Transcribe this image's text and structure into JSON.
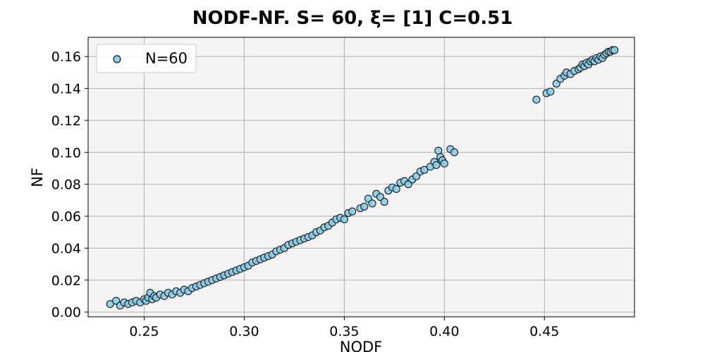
{
  "chart_data": {
    "type": "scatter",
    "title": "NODF-NF. S= 60, ξ= [1] C=0.51",
    "xlabel": "NODF",
    "ylabel": "NF",
    "xlim": [
      0.222,
      0.495
    ],
    "ylim": [
      -0.003,
      0.172
    ],
    "x_ticks": [
      "0.25",
      "0.30",
      "0.35",
      "0.40",
      "0.45"
    ],
    "x_tick_values": [
      0.25,
      0.3,
      0.35,
      0.4,
      0.45
    ],
    "y_ticks": [
      "0.00",
      "0.02",
      "0.04",
      "0.06",
      "0.08",
      "0.10",
      "0.12",
      "0.14",
      "0.16"
    ],
    "y_tick_values": [
      0.0,
      0.02,
      0.04,
      0.06,
      0.08,
      0.1,
      0.12,
      0.14,
      0.16
    ],
    "grid": true,
    "legend_position": "top-left",
    "plot_background": "#f4f4f4",
    "marker_color": "#87ceeb",
    "marker_edge_color": "#1a1a1a",
    "series": [
      {
        "name": "N=60",
        "points": [
          [
            0.233,
            0.005
          ],
          [
            0.236,
            0.007
          ],
          [
            0.238,
            0.004
          ],
          [
            0.24,
            0.006
          ],
          [
            0.242,
            0.005
          ],
          [
            0.244,
            0.006
          ],
          [
            0.246,
            0.007
          ],
          [
            0.248,
            0.006
          ],
          [
            0.25,
            0.008
          ],
          [
            0.251,
            0.007
          ],
          [
            0.252,
            0.009
          ],
          [
            0.253,
            0.012
          ],
          [
            0.254,
            0.008
          ],
          [
            0.255,
            0.01
          ],
          [
            0.256,
            0.009
          ],
          [
            0.258,
            0.011
          ],
          [
            0.26,
            0.01
          ],
          [
            0.262,
            0.012
          ],
          [
            0.264,
            0.011
          ],
          [
            0.266,
            0.013
          ],
          [
            0.268,
            0.012
          ],
          [
            0.27,
            0.014
          ],
          [
            0.272,
            0.013
          ],
          [
            0.274,
            0.015
          ],
          [
            0.276,
            0.016
          ],
          [
            0.278,
            0.017
          ],
          [
            0.28,
            0.018
          ],
          [
            0.282,
            0.019
          ],
          [
            0.284,
            0.02
          ],
          [
            0.286,
            0.021
          ],
          [
            0.288,
            0.022
          ],
          [
            0.29,
            0.023
          ],
          [
            0.292,
            0.024
          ],
          [
            0.294,
            0.025
          ],
          [
            0.296,
            0.026
          ],
          [
            0.298,
            0.027
          ],
          [
            0.3,
            0.028
          ],
          [
            0.302,
            0.029
          ],
          [
            0.304,
            0.031
          ],
          [
            0.306,
            0.032
          ],
          [
            0.308,
            0.033
          ],
          [
            0.31,
            0.034
          ],
          [
            0.312,
            0.035
          ],
          [
            0.314,
            0.036
          ],
          [
            0.316,
            0.038
          ],
          [
            0.318,
            0.039
          ],
          [
            0.32,
            0.04
          ],
          [
            0.322,
            0.042
          ],
          [
            0.324,
            0.043
          ],
          [
            0.326,
            0.044
          ],
          [
            0.328,
            0.045
          ],
          [
            0.33,
            0.046
          ],
          [
            0.332,
            0.047
          ],
          [
            0.334,
            0.048
          ],
          [
            0.336,
            0.05
          ],
          [
            0.338,
            0.051
          ],
          [
            0.34,
            0.053
          ],
          [
            0.342,
            0.054
          ],
          [
            0.344,
            0.056
          ],
          [
            0.346,
            0.058
          ],
          [
            0.348,
            0.059
          ],
          [
            0.35,
            0.058
          ],
          [
            0.352,
            0.062
          ],
          [
            0.354,
            0.063
          ],
          [
            0.358,
            0.065
          ],
          [
            0.36,
            0.066
          ],
          [
            0.362,
            0.071
          ],
          [
            0.364,
            0.068
          ],
          [
            0.366,
            0.074
          ],
          [
            0.368,
            0.072
          ],
          [
            0.37,
            0.069
          ],
          [
            0.372,
            0.076
          ],
          [
            0.374,
            0.078
          ],
          [
            0.376,
            0.077
          ],
          [
            0.378,
            0.081
          ],
          [
            0.38,
            0.082
          ],
          [
            0.382,
            0.08
          ],
          [
            0.384,
            0.083
          ],
          [
            0.386,
            0.085
          ],
          [
            0.388,
            0.088
          ],
          [
            0.39,
            0.089
          ],
          [
            0.393,
            0.091
          ],
          [
            0.395,
            0.094
          ],
          [
            0.396,
            0.092
          ],
          [
            0.397,
            0.101
          ],
          [
            0.398,
            0.097
          ],
          [
            0.399,
            0.095
          ],
          [
            0.4,
            0.093
          ],
          [
            0.403,
            0.102
          ],
          [
            0.405,
            0.1
          ],
          [
            0.446,
            0.133
          ],
          [
            0.451,
            0.137
          ],
          [
            0.453,
            0.138
          ],
          [
            0.456,
            0.143
          ],
          [
            0.458,
            0.146
          ],
          [
            0.46,
            0.148
          ],
          [
            0.461,
            0.15
          ],
          [
            0.463,
            0.149
          ],
          [
            0.465,
            0.151
          ],
          [
            0.467,
            0.152
          ],
          [
            0.468,
            0.153
          ],
          [
            0.469,
            0.155
          ],
          [
            0.47,
            0.154
          ],
          [
            0.471,
            0.156
          ],
          [
            0.472,
            0.155
          ],
          [
            0.473,
            0.157
          ],
          [
            0.474,
            0.158
          ],
          [
            0.475,
            0.157
          ],
          [
            0.476,
            0.159
          ],
          [
            0.477,
            0.158
          ],
          [
            0.478,
            0.16
          ],
          [
            0.479,
            0.159
          ],
          [
            0.48,
            0.161
          ],
          [
            0.481,
            0.162
          ],
          [
            0.482,
            0.163
          ],
          [
            0.483,
            0.163
          ],
          [
            0.484,
            0.164
          ],
          [
            0.485,
            0.164
          ]
        ]
      }
    ]
  }
}
